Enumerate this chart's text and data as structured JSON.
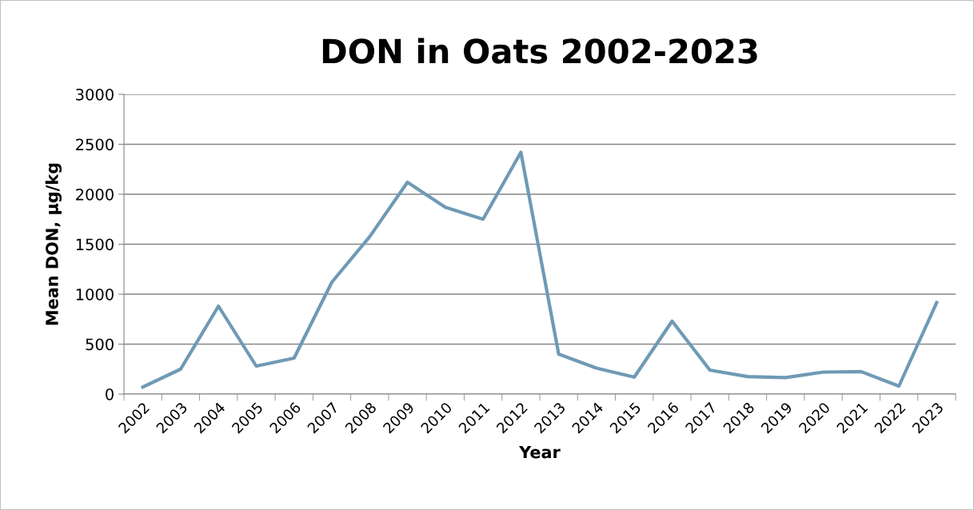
{
  "chart_data": {
    "type": "line",
    "title": "DON in Oats 2002-2023",
    "xlabel": "Year",
    "ylabel": "Mean DON, µg/kg",
    "categories": [
      "2002",
      "2003",
      "2004",
      "2005",
      "2006",
      "2007",
      "2008",
      "2009",
      "2010",
      "2011",
      "2012",
      "2013",
      "2014",
      "2015",
      "2016",
      "2017",
      "2018",
      "2019",
      "2020",
      "2021",
      "2022",
      "2023"
    ],
    "series": [
      {
        "color": "#6f9ab5",
        "values": [
          70,
          250,
          880,
          280,
          360,
          1120,
          1575,
          2120,
          1870,
          1750,
          2420,
          400,
          260,
          170,
          730,
          240,
          175,
          165,
          220,
          225,
          80,
          915
        ]
      }
    ],
    "ylim": [
      0,
      3000
    ],
    "yticks": [
      0,
      500,
      1000,
      1500,
      2000,
      2500,
      3000
    ],
    "grid": "y",
    "marker": "none",
    "line_style": "solid"
  }
}
